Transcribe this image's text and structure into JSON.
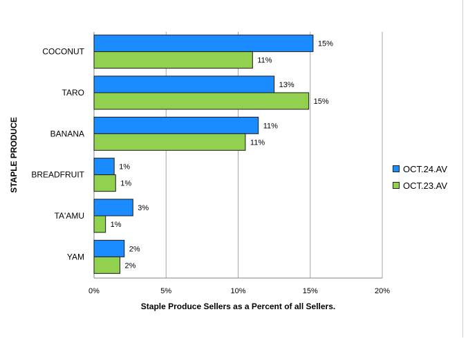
{
  "chart_data": {
    "type": "bar",
    "orientation": "horizontal",
    "title": "",
    "xlabel": "Staple Produce Sellers as a Percent of all Sellers.",
    "ylabel": "STAPLE PRODUCE",
    "categories": [
      "COCONUT",
      "TARO",
      "BANANA",
      "BREADFRUIT",
      "TA'AMU",
      "YAM"
    ],
    "series": [
      {
        "name": "OCT.24.AV",
        "color": "#1a8cff",
        "values": [
          15.2,
          12.5,
          11.4,
          1.4,
          2.7,
          2.1
        ],
        "labels": [
          "15%",
          "13%",
          "11%",
          "1%",
          "3%",
          "2%"
        ]
      },
      {
        "name": "OCT.23.AV",
        "color": "#92d050",
        "values": [
          11.0,
          14.9,
          10.5,
          1.5,
          0.8,
          1.8
        ],
        "labels": [
          "11%",
          "15%",
          "11%",
          "1%",
          "1%",
          "2%"
        ]
      }
    ],
    "xlim": [
      0,
      20
    ],
    "xticks": [
      0,
      5,
      10,
      15,
      20
    ],
    "xtick_labels": [
      "0%",
      "5%",
      "10%",
      "15%",
      "20%"
    ],
    "grid": true,
    "legend_position": "right"
  }
}
